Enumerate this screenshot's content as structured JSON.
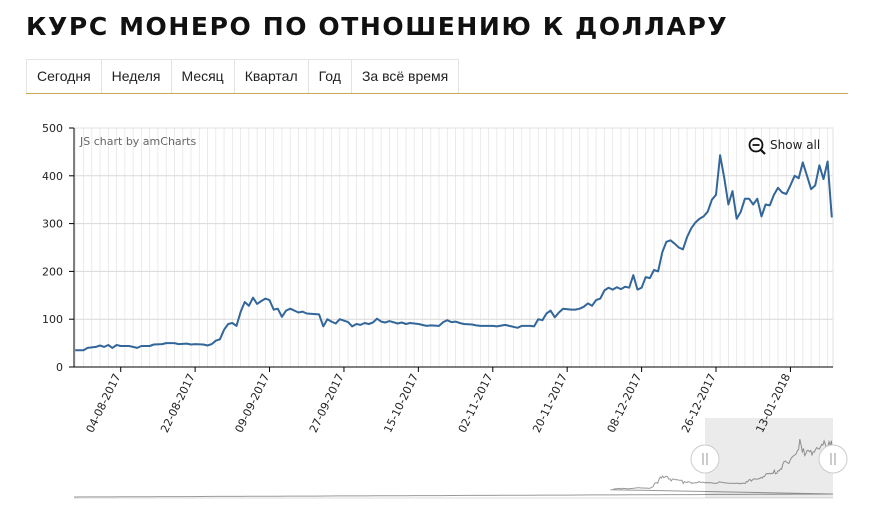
{
  "page": {
    "title": "КУРС МОНЕРО ПО ОТНОШЕНИЮ К ДОЛЛАРУ"
  },
  "tabs": [
    {
      "label": "Сегодня"
    },
    {
      "label": "Неделя"
    },
    {
      "label": "Месяц"
    },
    {
      "label": "Квартал"
    },
    {
      "label": "Год"
    },
    {
      "label": "За всё время"
    }
  ],
  "chart_ui": {
    "credit": "JS chart by amCharts",
    "show_all": "Show all",
    "zoom_icon": "zoom-out-icon"
  },
  "colors": {
    "line": "#336699",
    "grid": "#e6e6e6",
    "accent": "#c8a951"
  },
  "chart_data": {
    "type": "line",
    "xlabel": "",
    "ylabel": "",
    "ylim": [
      0,
      500
    ],
    "yticks": [
      0,
      100,
      200,
      300,
      400,
      500
    ],
    "grid": true,
    "legend": "none",
    "xtick_labels": [
      "04-08-2017",
      "22-08-2017",
      "09-09-2017",
      "27-09-2017",
      "15-10-2017",
      "02-11-2017",
      "20-11-2017",
      "08-12-2017",
      "26-12-2017",
      "13-01-2018"
    ],
    "x_start": "2017-07-24",
    "x_end": "2018-01-17",
    "series": [
      {
        "points": [
          [
            "2017-07-24",
            35
          ],
          [
            "2017-07-26",
            35
          ],
          [
            "2017-07-27",
            40
          ],
          [
            "2017-07-29",
            42
          ],
          [
            "2017-07-30",
            45
          ],
          [
            "2017-07-31",
            42
          ],
          [
            "2017-08-01",
            46
          ],
          [
            "2017-08-02",
            40
          ],
          [
            "2017-08-03",
            46
          ],
          [
            "2017-08-04",
            44
          ],
          [
            "2017-08-06",
            44
          ],
          [
            "2017-08-07",
            42
          ],
          [
            "2017-08-08",
            40
          ],
          [
            "2017-08-09",
            44
          ],
          [
            "2017-08-11",
            44
          ],
          [
            "2017-08-12",
            47
          ],
          [
            "2017-08-14",
            48
          ],
          [
            "2017-08-15",
            50
          ],
          [
            "2017-08-17",
            50
          ],
          [
            "2017-08-18",
            48
          ],
          [
            "2017-08-20",
            49
          ],
          [
            "2017-08-21",
            47
          ],
          [
            "2017-08-22",
            48
          ],
          [
            "2017-08-24",
            47
          ],
          [
            "2017-08-25",
            45
          ],
          [
            "2017-08-26",
            48
          ],
          [
            "2017-08-27",
            55
          ],
          [
            "2017-08-28",
            58
          ],
          [
            "2017-08-29",
            78
          ],
          [
            "2017-08-30",
            90
          ],
          [
            "2017-08-31",
            92
          ],
          [
            "2017-09-01",
            86
          ],
          [
            "2017-09-02",
            115
          ],
          [
            "2017-09-03",
            136
          ],
          [
            "2017-09-04",
            128
          ],
          [
            "2017-09-05",
            145
          ],
          [
            "2017-09-06",
            132
          ],
          [
            "2017-09-07",
            138
          ],
          [
            "2017-09-08",
            143
          ],
          [
            "2017-09-09",
            140
          ],
          [
            "2017-09-10",
            120
          ],
          [
            "2017-09-11",
            122
          ],
          [
            "2017-09-12",
            105
          ],
          [
            "2017-09-13",
            118
          ],
          [
            "2017-09-14",
            122
          ],
          [
            "2017-09-16",
            114
          ],
          [
            "2017-09-17",
            116
          ],
          [
            "2017-09-18",
            112
          ],
          [
            "2017-09-21",
            110
          ],
          [
            "2017-09-22",
            85
          ],
          [
            "2017-09-23",
            100
          ],
          [
            "2017-09-24",
            95
          ],
          [
            "2017-09-25",
            91
          ],
          [
            "2017-09-26",
            100
          ],
          [
            "2017-09-28",
            94
          ],
          [
            "2017-09-29",
            85
          ],
          [
            "2017-09-30",
            90
          ],
          [
            "2017-10-01",
            88
          ],
          [
            "2017-10-02",
            92
          ],
          [
            "2017-10-03",
            90
          ],
          [
            "2017-10-04",
            93
          ],
          [
            "2017-10-05",
            101
          ],
          [
            "2017-10-06",
            95
          ],
          [
            "2017-10-07",
            93
          ],
          [
            "2017-10-08",
            96
          ],
          [
            "2017-10-10",
            91
          ],
          [
            "2017-10-11",
            93
          ],
          [
            "2017-10-12",
            90
          ],
          [
            "2017-10-13",
            92
          ],
          [
            "2017-10-15",
            90
          ],
          [
            "2017-10-17",
            86
          ],
          [
            "2017-10-18",
            87
          ],
          [
            "2017-10-20",
            86
          ],
          [
            "2017-10-21",
            94
          ],
          [
            "2017-10-22",
            98
          ],
          [
            "2017-10-23",
            94
          ],
          [
            "2017-10-24",
            95
          ],
          [
            "2017-10-25",
            92
          ],
          [
            "2017-10-26",
            90
          ],
          [
            "2017-10-28",
            89
          ],
          [
            "2017-10-29",
            87
          ],
          [
            "2017-10-30",
            86
          ],
          [
            "2017-10-31",
            86
          ],
          [
            "2017-11-01",
            86
          ],
          [
            "2017-11-02",
            86
          ],
          [
            "2017-11-03",
            85
          ],
          [
            "2017-11-05",
            88
          ],
          [
            "2017-11-06",
            86
          ],
          [
            "2017-11-08",
            82
          ],
          [
            "2017-11-09",
            86
          ],
          [
            "2017-11-11",
            86
          ],
          [
            "2017-11-12",
            85
          ],
          [
            "2017-11-13",
            100
          ],
          [
            "2017-11-14",
            98
          ],
          [
            "2017-11-15",
            112
          ],
          [
            "2017-11-16",
            118
          ],
          [
            "2017-11-17",
            104
          ],
          [
            "2017-11-18",
            114
          ],
          [
            "2017-11-19",
            122
          ],
          [
            "2017-11-21",
            120
          ],
          [
            "2017-11-22",
            120
          ],
          [
            "2017-11-23",
            122
          ],
          [
            "2017-11-24",
            126
          ],
          [
            "2017-11-25",
            133
          ],
          [
            "2017-11-26",
            128
          ],
          [
            "2017-11-27",
            140
          ],
          [
            "2017-11-28",
            143
          ],
          [
            "2017-11-29",
            160
          ],
          [
            "2017-11-30",
            166
          ],
          [
            "2017-12-01",
            162
          ],
          [
            "2017-12-02",
            167
          ],
          [
            "2017-12-03",
            163
          ],
          [
            "2017-12-04",
            168
          ],
          [
            "2017-12-05",
            166
          ],
          [
            "2017-12-06",
            192
          ],
          [
            "2017-12-07",
            162
          ],
          [
            "2017-12-08",
            166
          ],
          [
            "2017-12-09",
            188
          ],
          [
            "2017-12-10",
            186
          ],
          [
            "2017-12-11",
            203
          ],
          [
            "2017-12-12",
            200
          ],
          [
            "2017-12-13",
            240
          ],
          [
            "2017-12-14",
            262
          ],
          [
            "2017-12-15",
            265
          ],
          [
            "2017-12-16",
            258
          ],
          [
            "2017-12-17",
            250
          ],
          [
            "2017-12-18",
            246
          ],
          [
            "2017-12-19",
            272
          ],
          [
            "2017-12-20",
            290
          ],
          [
            "2017-12-21",
            302
          ],
          [
            "2017-12-22",
            310
          ],
          [
            "2017-12-23",
            315
          ],
          [
            "2017-12-24",
            325
          ],
          [
            "2017-12-25",
            350
          ],
          [
            "2017-12-26",
            360
          ],
          [
            "2017-12-27",
            443
          ],
          [
            "2017-12-28",
            395
          ],
          [
            "2017-12-29",
            340
          ],
          [
            "2017-12-30",
            368
          ],
          [
            "2017-12-31",
            310
          ],
          [
            "2018-01-01",
            325
          ],
          [
            "2018-01-02",
            352
          ],
          [
            "2018-01-03",
            352
          ],
          [
            "2018-01-04",
            340
          ],
          [
            "2018-01-05",
            352
          ],
          [
            "2018-01-06",
            315
          ],
          [
            "2018-01-07",
            340
          ],
          [
            "2018-01-08",
            338
          ],
          [
            "2018-01-09",
            360
          ],
          [
            "2018-01-10",
            375
          ],
          [
            "2018-01-11",
            365
          ],
          [
            "2018-01-12",
            362
          ],
          [
            "2018-01-13",
            380
          ],
          [
            "2018-01-14",
            400
          ],
          [
            "2018-01-15",
            395
          ],
          [
            "2018-01-16",
            428
          ],
          [
            "2018-01-17",
            400
          ],
          [
            "2018-01-18",
            372
          ],
          [
            "2018-01-19",
            380
          ],
          [
            "2018-01-20",
            422
          ],
          [
            "2018-01-21",
            393
          ],
          [
            "2018-01-22",
            430
          ],
          [
            "2018-01-23",
            313
          ]
        ]
      }
    ]
  }
}
